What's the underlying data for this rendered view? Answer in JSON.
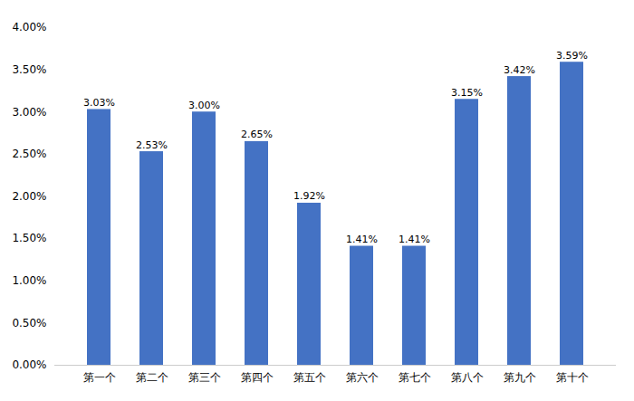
{
  "chart_data": {
    "type": "bar",
    "categories": [
      "第一个",
      "第二个",
      "第三个",
      "第四个",
      "第五个",
      "第六个",
      "第七个",
      "第八个",
      "第九个",
      "第十个"
    ],
    "values": [
      0.0303,
      0.0253,
      0.03,
      0.0265,
      0.0192,
      0.0141,
      0.0141,
      0.0315,
      0.0342,
      0.0359
    ],
    "value_labels": [
      "3.03%",
      "2.53%",
      "3.00%",
      "2.65%",
      "1.92%",
      "1.41%",
      "1.41%",
      "3.15%",
      "3.42%",
      "3.59%"
    ],
    "data_labels": true,
    "color": "#4472C4",
    "ylim": [
      0,
      0.04
    ],
    "yticks": [
      {
        "value": 0.0,
        "label": "0.00%"
      },
      {
        "value": 0.005,
        "label": "0.50%"
      },
      {
        "value": 0.01,
        "label": "1.00%"
      },
      {
        "value": 0.015,
        "label": "1.50%"
      },
      {
        "value": 0.02,
        "label": "2.00%"
      },
      {
        "value": 0.025,
        "label": "2.50%"
      },
      {
        "value": 0.03,
        "label": "3.00%"
      },
      {
        "value": 0.035,
        "label": "3.50%"
      },
      {
        "value": 0.04,
        "label": "4.00%"
      }
    ],
    "grid": false
  }
}
